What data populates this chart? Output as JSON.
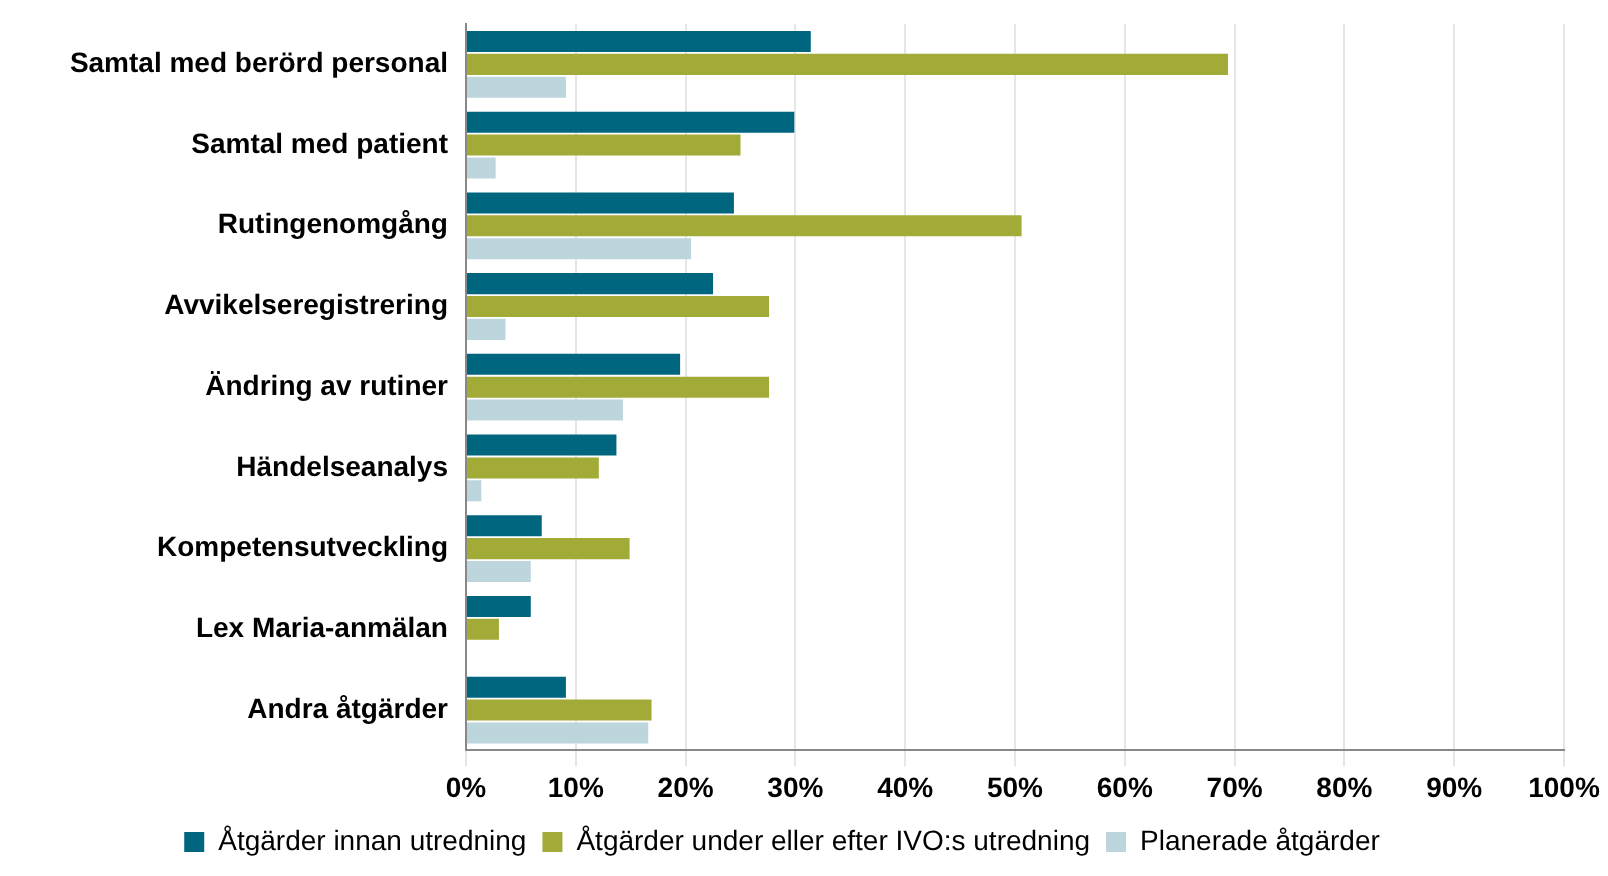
{
  "chart_data": {
    "type": "bar",
    "orientation": "horizontal",
    "categories": [
      "Samtal med berörd personal",
      "Samtal med patient",
      "Rutingenomgång",
      "Avvikelseregistrering",
      "Ändring av rutiner",
      "Händelseanalys",
      "Kompetensutveckling",
      "Lex Maria-anmälan",
      "Andra åtgärder"
    ],
    "series": [
      {
        "name": "Åtgärder innan utredning",
        "color": "#006680",
        "values": [
          31.4,
          29.9,
          24.4,
          22.5,
          19.5,
          13.7,
          6.9,
          5.9,
          9.1
        ]
      },
      {
        "name": "Åtgärder under eller efter IVO:s utredning",
        "color": "#a3ab38",
        "values": [
          69.4,
          25,
          50.6,
          27.6,
          27.6,
          12.1,
          14.9,
          3,
          16.9
        ]
      },
      {
        "name": "Planerade åtgärder",
        "color": "#bdd5dc",
        "values": [
          9.1,
          2.7,
          20.5,
          3.6,
          14.3,
          1.4,
          5.9,
          0,
          16.6
        ]
      }
    ],
    "xlim": [
      0,
      100
    ],
    "xticks": [
      {
        "value": 0,
        "label": "0%"
      },
      {
        "value": 10,
        "label": "10%"
      },
      {
        "value": 20,
        "label": "20%"
      },
      {
        "value": 30,
        "label": "30%"
      },
      {
        "value": 40,
        "label": "40%"
      },
      {
        "value": 50,
        "label": "50%"
      },
      {
        "value": 60,
        "label": "60%"
      },
      {
        "value": 70,
        "label": "70%"
      },
      {
        "value": 80,
        "label": "80%"
      },
      {
        "value": 90,
        "label": "90%"
      },
      {
        "value": 100,
        "label": "100%"
      }
    ],
    "grid": "x",
    "legend": "bottom"
  }
}
